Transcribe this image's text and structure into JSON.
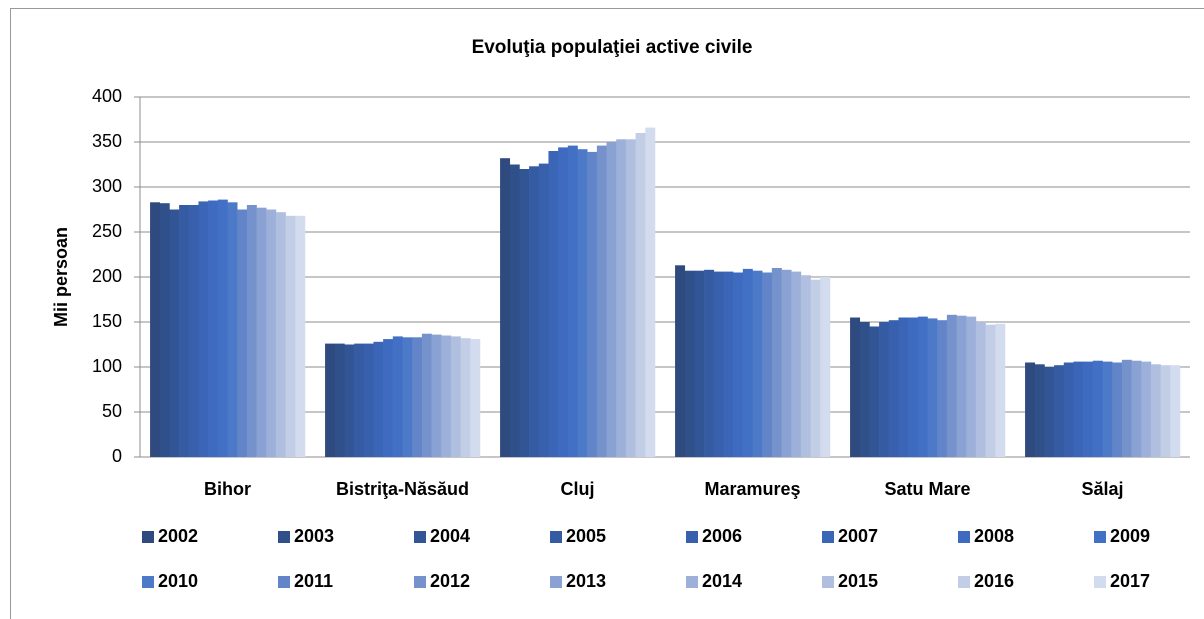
{
  "chart_data": {
    "type": "bar",
    "title": "Evoluţia populaţiei active civile",
    "y_label": "Mii persoan",
    "categories": [
      "Bihor",
      "Bistriţa-Năsăud",
      "Cluj",
      "Maramureş",
      "Satu Mare",
      "Sălaj"
    ],
    "ylim": [
      0,
      400
    ],
    "yticks": [
      0,
      50,
      100,
      150,
      200,
      250,
      300,
      350,
      400
    ],
    "grid": true,
    "series": [
      {
        "name": "2002",
        "color": "#2f4a7e",
        "values": [
          283,
          126,
          332,
          213,
          155,
          105
        ]
      },
      {
        "name": "2003",
        "color": "#30508a",
        "values": [
          282,
          126,
          325,
          207,
          150,
          103
        ]
      },
      {
        "name": "2004",
        "color": "#325596",
        "values": [
          275,
          125,
          320,
          207,
          145,
          100
        ]
      },
      {
        "name": "2005",
        "color": "#355ba2",
        "values": [
          280,
          126,
          323,
          208,
          150,
          102
        ]
      },
      {
        "name": "2006",
        "color": "#3860ad",
        "values": [
          280,
          126,
          326,
          206,
          152,
          105
        ]
      },
      {
        "name": "2007",
        "color": "#3b66b7",
        "values": [
          284,
          128,
          340,
          206,
          155,
          106
        ]
      },
      {
        "name": "2008",
        "color": "#3e6bbf",
        "values": [
          285,
          131,
          344,
          205,
          155,
          106
        ]
      },
      {
        "name": "2009",
        "color": "#4170c4",
        "values": [
          286,
          134,
          346,
          209,
          156,
          107
        ]
      },
      {
        "name": "2010",
        "color": "#4d7ac8",
        "values": [
          283,
          133,
          342,
          207,
          154,
          106
        ]
      },
      {
        "name": "2011",
        "color": "#6185c8",
        "values": [
          275,
          133,
          339,
          205,
          152,
          105
        ]
      },
      {
        "name": "2012",
        "color": "#7592cd",
        "values": [
          280,
          137,
          346,
          210,
          158,
          108
        ]
      },
      {
        "name": "2013",
        "color": "#8aa1d3",
        "values": [
          277,
          136,
          350,
          208,
          157,
          107
        ]
      },
      {
        "name": "2014",
        "color": "#9db0d9",
        "values": [
          275,
          135,
          353,
          206,
          156,
          106
        ]
      },
      {
        "name": "2015",
        "color": "#b0bfdf",
        "values": [
          272,
          134,
          353,
          202,
          150,
          103
        ]
      },
      {
        "name": "2016",
        "color": "#c2cde6",
        "values": [
          268,
          132,
          360,
          197,
          147,
          102
        ]
      },
      {
        "name": "2017",
        "color": "#d3dbee",
        "values": [
          268,
          131,
          366,
          200,
          148,
          102
        ]
      }
    ]
  }
}
